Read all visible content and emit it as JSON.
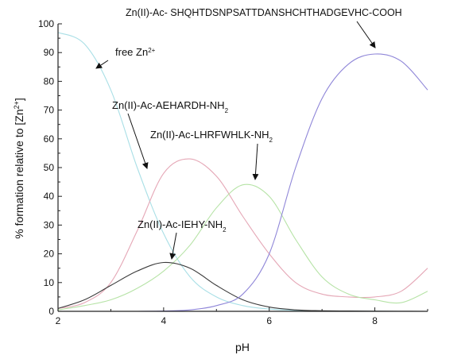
{
  "chart_data": {
    "type": "line",
    "title": "",
    "xlabel": "pH",
    "ylabel": "% formation relative to [Zn2+]",
    "ylabel_parts": {
      "before": "% formation relative to [Zn",
      "sup": "2+",
      "after": "]"
    },
    "xlim": [
      2,
      9
    ],
    "ylim": [
      0,
      100
    ],
    "xticks": [
      2,
      4,
      6,
      8
    ],
    "yticks": [
      0,
      10,
      20,
      30,
      40,
      50,
      60,
      70,
      80,
      90,
      100
    ],
    "grid": false,
    "legend": "none",
    "x": [
      2.0,
      2.5,
      3.0,
      3.5,
      4.0,
      4.5,
      5.0,
      5.5,
      6.0,
      6.5,
      7.0,
      7.5,
      8.0,
      8.5,
      9.0
    ],
    "series": [
      {
        "name": "free Zn2+",
        "color": "#a9dfe6",
        "values": [
          97,
          93,
          77,
          50,
          27,
          12,
          5,
          2,
          0.8,
          0.3,
          0.1,
          0.05,
          0.02,
          0.01,
          0
        ]
      },
      {
        "name": "Zn(II)-Ac-AEHARDH-NH2",
        "color": "#e5a7b6",
        "values": [
          1,
          3,
          10,
          28,
          48,
          53,
          47,
          33,
          20,
          10,
          6,
          5,
          5,
          7,
          15
        ]
      },
      {
        "name": "Zn(II)-Ac-LHRFWHLK-NH2",
        "color": "#b6e3a6",
        "values": [
          0.5,
          2,
          4,
          8,
          14,
          23,
          36,
          44,
          40,
          25,
          12,
          6,
          4,
          3,
          7
        ]
      },
      {
        "name": "Zn(II)-Ac-IEHY-NH2",
        "color": "#3a3a3a",
        "values": [
          1,
          4,
          9,
          14,
          17,
          15,
          9,
          4,
          1.5,
          0.5,
          0.2,
          0.1,
          0.05,
          0.02,
          0
        ]
      },
      {
        "name": "Zn(II)-Ac- SHQHTDSNPSATTDANSHCHTHADGEVHC-COOH",
        "color": "#8f86d8",
        "values": [
          0,
          0,
          0,
          0,
          0.1,
          0.5,
          2,
          6,
          20,
          50,
          74,
          86,
          89.5,
          87,
          77
        ]
      }
    ],
    "annotations": [
      {
        "id": "free-zn",
        "base": "free Zn",
        "sup": "2+",
        "sub": ""
      },
      {
        "id": "aehardh",
        "base": "Zn(II)-Ac-AEHARDH-NH",
        "sup": "",
        "sub": "2"
      },
      {
        "id": "lhrfwhlk",
        "base": "Zn(II)-Ac-LHRFWHLK-NH",
        "sup": "",
        "sub": "2"
      },
      {
        "id": "iehy",
        "base": "Zn(II)-Ac-IEHY-NH",
        "sup": "",
        "sub": "2"
      },
      {
        "id": "shqh",
        "base": "Zn(II)-Ac- SHQHTDSNPSATTDANSHCHTHADGEVHC-COOH",
        "sup": "",
        "sub": ""
      }
    ]
  }
}
